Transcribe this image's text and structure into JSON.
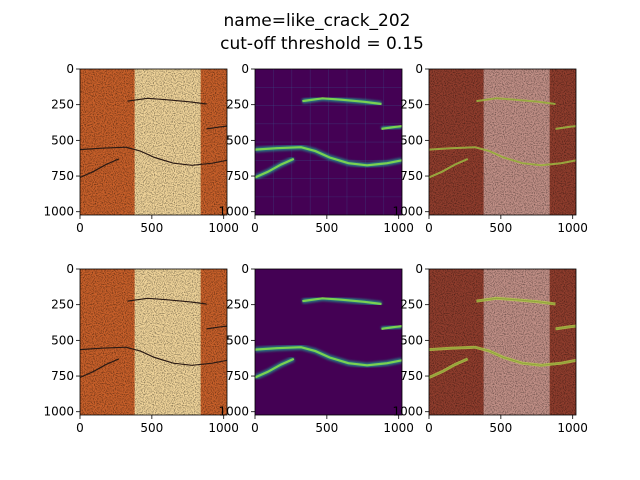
{
  "figure": {
    "title_line1": "name=like_crack_202",
    "title_line2": "cut-off threshold = 0.15"
  },
  "chart_data": {
    "type": "heatmap",
    "layout": "2 rows x 3 columns of image panels",
    "xlim": [
      0,
      1023
    ],
    "ylim": [
      1023,
      0
    ],
    "x_ticks": [
      0,
      500,
      1000
    ],
    "y_ticks": [
      0,
      250,
      500,
      750,
      1000
    ],
    "colors": {
      "orange_dark": "#c8602a",
      "orange_mid": "#d98a4b",
      "beige": "#f0d49a",
      "viridis_bg": "#440154",
      "viridis_mid": "#3b528b",
      "viridis_high": "#21918c",
      "viridis_top": "#fde725",
      "overlay_dark": "#8f3d2d",
      "overlay_light": "#c08f86"
    },
    "panels": [
      {
        "row": 0,
        "col": 0,
        "kind": "input image"
      },
      {
        "row": 0,
        "col": 1,
        "kind": "prediction heatmap"
      },
      {
        "row": 0,
        "col": 2,
        "kind": "prediction overlay"
      },
      {
        "row": 1,
        "col": 0,
        "kind": "input image"
      },
      {
        "row": 1,
        "col": 1,
        "kind": "ground truth mask"
      },
      {
        "row": 1,
        "col": 2,
        "kind": "ground truth overlay"
      }
    ],
    "crack_paths": [
      [
        [
          330,
          225
        ],
        [
          470,
          205
        ],
        [
          600,
          215
        ],
        [
          760,
          230
        ],
        [
          880,
          245
        ]
      ],
      [
        [
          0,
          565
        ],
        [
          150,
          555
        ],
        [
          320,
          548
        ],
        [
          420,
          575
        ],
        [
          520,
          620
        ],
        [
          650,
          660
        ],
        [
          780,
          675
        ],
        [
          920,
          660
        ],
        [
          1023,
          640
        ]
      ],
      [
        [
          0,
          760
        ],
        [
          90,
          720
        ],
        [
          180,
          670
        ],
        [
          270,
          630
        ]
      ],
      [
        [
          880,
          420
        ],
        [
          980,
          405
        ],
        [
          1023,
          400
        ]
      ]
    ]
  }
}
